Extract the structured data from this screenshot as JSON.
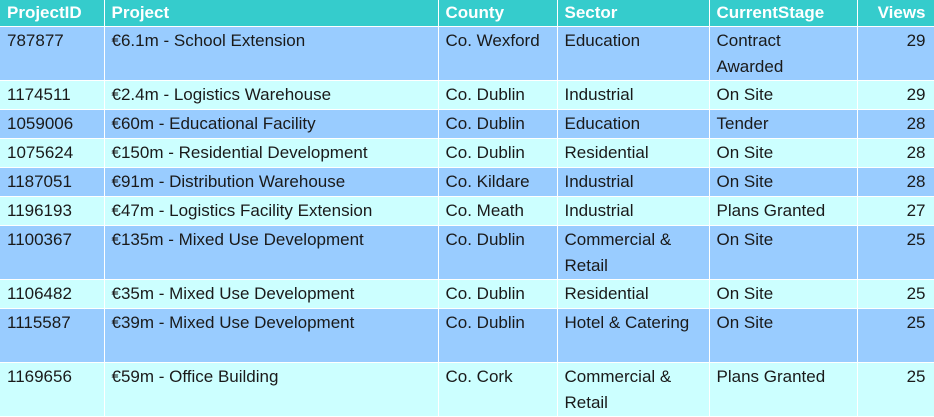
{
  "table": {
    "headers": [
      "ProjectID",
      "Project",
      "County",
      "Sector",
      "CurrentStage",
      "Views"
    ],
    "rows": [
      [
        "787877",
        "€6.1m - School Extension",
        "Co. Wexford",
        "Education",
        "Contract Awarded",
        "29"
      ],
      [
        "1174511",
        "€2.4m - Logistics Warehouse",
        "Co. Dublin",
        "Industrial",
        "On Site",
        "29"
      ],
      [
        "1059006",
        "€60m - Educational Facility",
        "Co. Dublin",
        "Education",
        "Tender",
        "28"
      ],
      [
        "1075624",
        "€150m - Residential Development",
        "Co. Dublin",
        "Residential",
        "On Site",
        "28"
      ],
      [
        "1187051",
        "€91m - Distribution Warehouse",
        "Co. Kildare",
        "Industrial",
        "On Site",
        "28"
      ],
      [
        "1196193",
        "€47m - Logistics Facility Extension",
        "Co. Meath",
        "Industrial",
        "Plans Granted",
        "27"
      ],
      [
        "1100367",
        "€135m - Mixed Use Development",
        "Co. Dublin",
        "Commercial & Retail",
        "On Site",
        "25"
      ],
      [
        "1106482",
        "€35m - Mixed Use Development",
        "Co. Dublin",
        "Residential",
        "On Site",
        "25"
      ],
      [
        "1115587",
        "€39m - Mixed Use Development",
        "Co. Dublin",
        "Hotel & Catering",
        "On Site",
        "25"
      ],
      [
        "1169656",
        "€59m - Office Building",
        "Co. Cork",
        "Commercial & Retail",
        "Plans Granted",
        "25"
      ]
    ]
  },
  "colors": {
    "header_bg": "#35cccc",
    "header_text": "#ffffff",
    "band_a": "#99ccff",
    "band_b": "#ccffff",
    "body_text": "#1a1a1a"
  }
}
